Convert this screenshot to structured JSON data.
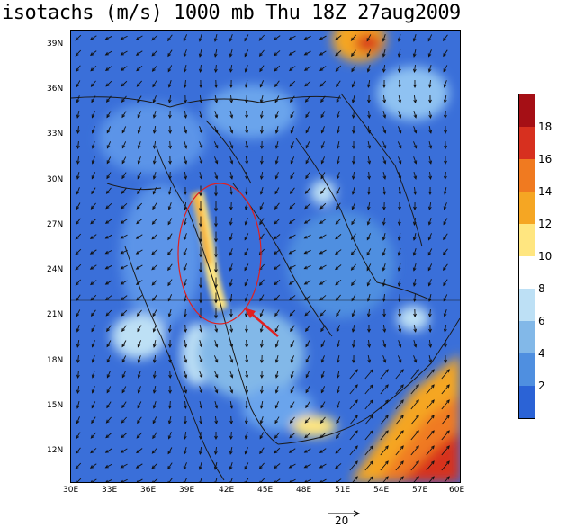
{
  "title": "isotachs (m/s) 1000 mb Thu 18Z 27aug2009",
  "lat_labels": [
    "39N",
    "36N",
    "33N",
    "30N",
    "27N",
    "24N",
    "21N",
    "18N",
    "15N",
    "12N"
  ],
  "lon_labels": [
    "30E",
    "33E",
    "36E",
    "39E",
    "42E",
    "45E",
    "48E",
    "51E",
    "54E",
    "57E",
    "60E"
  ],
  "colorbar": {
    "labels": [
      "18",
      "16",
      "14",
      "12",
      "10",
      "8",
      "6",
      "4",
      "2"
    ],
    "colors": [
      "#a50f15",
      "#d7301f",
      "#f07a20",
      "#f5a623",
      "#ffe680",
      "#ffffff",
      "#bde0f5",
      "#82b8e8",
      "#4f8fe0",
      "#2b63d6"
    ]
  },
  "reference_vector": {
    "label": "20"
  },
  "colors": {
    "ocean_blue": "#3a6fd9",
    "annotation_red": "#e02020"
  }
}
